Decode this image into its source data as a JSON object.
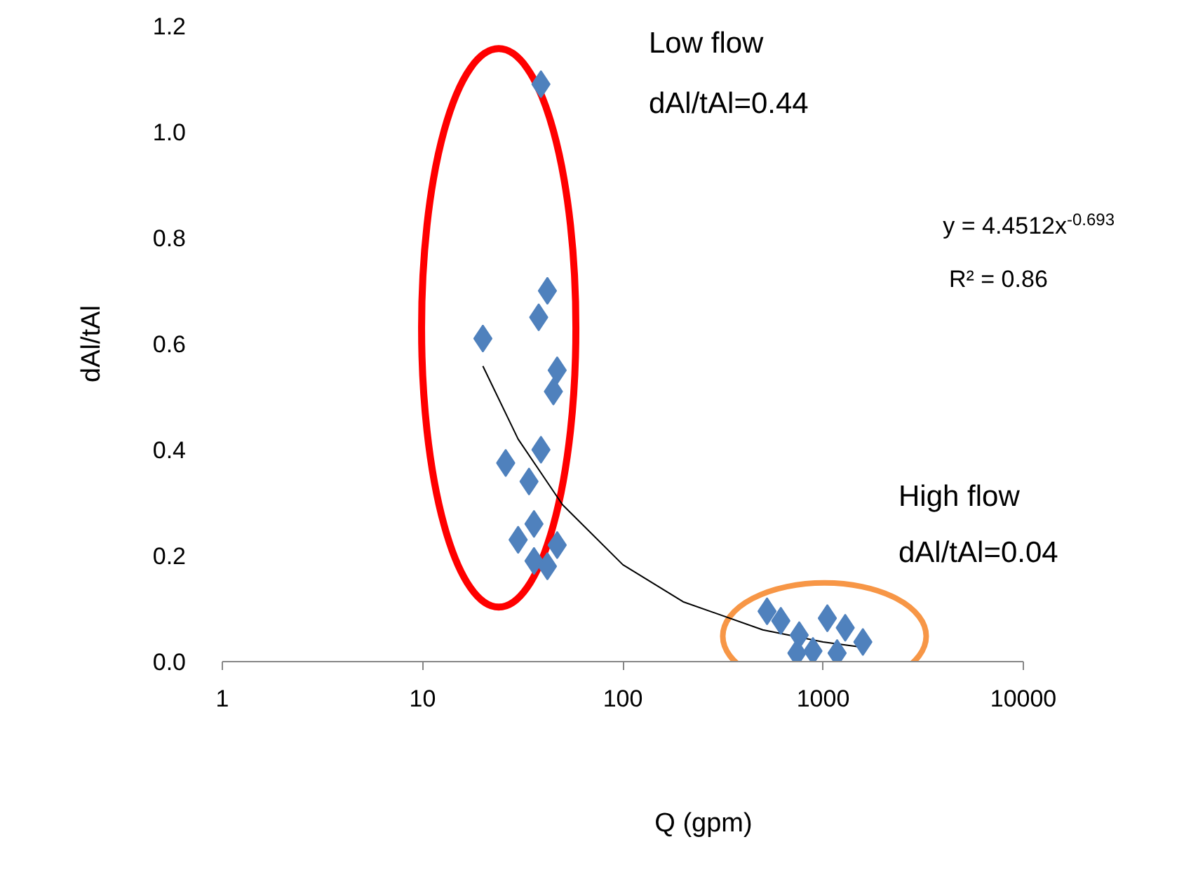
{
  "chart_data": {
    "type": "scatter",
    "xlabel": "Q (gpm)",
    "ylabel": "dAl/tAl",
    "log": "x",
    "grid": false,
    "marker": "diamond",
    "xlim": [
      1,
      10000
    ],
    "xticks": [
      1,
      10,
      100,
      1000,
      10000
    ],
    "ylim": [
      0,
      1.2
    ],
    "yticks": [
      {
        "value": 0,
        "label": "0.0"
      },
      {
        "value": 0.2,
        "label": "0.2"
      },
      {
        "value": 0.4,
        "label": "0.4"
      },
      {
        "value": 0.6,
        "label": "0.6"
      },
      {
        "value": 0.8,
        "label": "0.8"
      },
      {
        "value": 1.0,
        "label": "1.0"
      },
      {
        "value": 1.2,
        "label": "1.2"
      }
    ],
    "series": [
      {
        "color": "#4f81bd",
        "x": [
          39,
          42,
          38,
          20,
          47,
          45,
          39,
          26,
          34,
          36,
          30,
          47,
          36,
          42,
          525,
          615,
          760,
          740,
          1050,
          1290,
          1580,
          1175,
          890
        ],
        "values": [
          1.09,
          0.7,
          0.65,
          0.61,
          0.55,
          0.51,
          0.4,
          0.375,
          0.34,
          0.26,
          0.23,
          0.22,
          0.19,
          0.18,
          0.095,
          0.077,
          0.05,
          0.016,
          0.082,
          0.064,
          0.037,
          0.016,
          0.02
        ]
      },
      {
        "type": "line",
        "color": "#000000",
        "marker": "none",
        "x": [
          20,
          30,
          50,
          100,
          200,
          500,
          1000,
          1500
        ],
        "values": [
          0.558,
          0.42,
          0.296,
          0.183,
          0.113,
          0.06,
          0.037,
          0.028
        ]
      }
    ],
    "annotations": [
      "Low flow",
      "dAl/tAl=0.44",
      "High flow",
      "dAl/tAl=0.04",
      "y = 4.4512x$^{-0.693}$",
      "R² = 0.86"
    ]
  }
}
